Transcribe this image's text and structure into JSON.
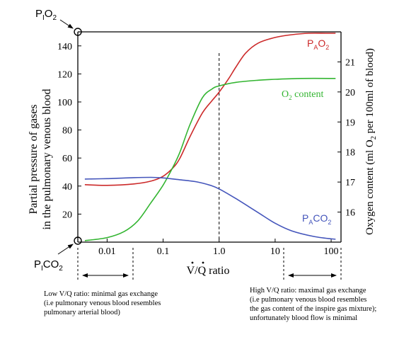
{
  "chart_data": {
    "type": "line",
    "x_scale": "log",
    "x_ticks": [
      0.01,
      0.1,
      1.0,
      10,
      100
    ],
    "x_tick_labels": [
      "0.01",
      "0.1",
      "1.0",
      "10",
      "100"
    ],
    "xlabel": "V/Q ratio",
    "xlim": [
      0.003,
      150
    ],
    "ylabel_left_line1": "Partial pressure of gases",
    "ylabel_left_line2": "in the pulmonary venous blood",
    "ylim_left": [
      0,
      150
    ],
    "y_ticks_left": [
      20,
      40,
      60,
      80,
      100,
      120,
      140
    ],
    "ylabel_right": "Oxygen content (ml O2 per 100ml of blood)",
    "ylim_right": [
      15,
      22
    ],
    "y_ticks_right": [
      16,
      17,
      18,
      19,
      20,
      21
    ],
    "reference_line_x": 1.0,
    "series": [
      {
        "name": "PAO2",
        "color": "#cc2a2a",
        "axis": "left",
        "points": [
          [
            0.004,
            41
          ],
          [
            0.01,
            40.5
          ],
          [
            0.03,
            41.5
          ],
          [
            0.06,
            43.5
          ],
          [
            0.1,
            47
          ],
          [
            0.15,
            53
          ],
          [
            0.2,
            60
          ],
          [
            0.3,
            75
          ],
          [
            0.5,
            92
          ],
          [
            0.75,
            101
          ],
          [
            1.0,
            107
          ],
          [
            1.5,
            117
          ],
          [
            2,
            125
          ],
          [
            3,
            135
          ],
          [
            5,
            142
          ],
          [
            10,
            146
          ],
          [
            20,
            148
          ],
          [
            40,
            149
          ],
          [
            80,
            149
          ],
          [
            120,
            149
          ]
        ]
      },
      {
        "name": "O2 content",
        "color": "#33b531",
        "axis": "right",
        "points": [
          [
            0.004,
            15.05
          ],
          [
            0.01,
            15.15
          ],
          [
            0.02,
            15.35
          ],
          [
            0.035,
            15.7
          ],
          [
            0.06,
            16.3
          ],
          [
            0.1,
            16.9
          ],
          [
            0.15,
            17.5
          ],
          [
            0.2,
            18.0
          ],
          [
            0.3,
            18.9
          ],
          [
            0.5,
            19.8
          ],
          [
            0.75,
            20.1
          ],
          [
            1.0,
            20.2
          ],
          [
            2,
            20.32
          ],
          [
            5,
            20.39
          ],
          [
            10,
            20.42
          ],
          [
            30,
            20.45
          ],
          [
            120,
            20.45
          ]
        ]
      },
      {
        "name": "PACO2",
        "color": "#4455bb",
        "axis": "left",
        "points": [
          [
            0.004,
            45
          ],
          [
            0.01,
            45.3
          ],
          [
            0.03,
            46
          ],
          [
            0.06,
            46.2
          ],
          [
            0.1,
            45.8
          ],
          [
            0.2,
            44.5
          ],
          [
            0.4,
            43
          ],
          [
            0.7,
            40.5
          ],
          [
            1.0,
            38
          ],
          [
            2,
            31
          ],
          [
            5,
            21
          ],
          [
            10,
            13.5
          ],
          [
            20,
            8
          ],
          [
            50,
            4
          ],
          [
            120,
            2
          ]
        ]
      }
    ],
    "labels": {
      "pio2": {
        "main": "P",
        "sub": "I",
        "rest": "O",
        "sub2": "2"
      },
      "pico2": {
        "main": "P",
        "sub": "I",
        "rest": "CO",
        "sub2": "2"
      },
      "pao2": {
        "main": "P",
        "sub": "A",
        "rest": "O",
        "sub2": "2"
      },
      "paco2": {
        "main": "P",
        "sub": "A",
        "rest": "CO",
        "sub2": "2"
      },
      "o2content": {
        "main": "O",
        "sub": "2",
        "rest": " content"
      }
    },
    "regions": {
      "low": {
        "line1": "Low V/Q ratio: minimal gas exchange",
        "line2": "(i.e pulmonary venous blood resembles",
        "line3": "pulmonary arterial blood)"
      },
      "high": {
        "line1": "High V/Q ratio: maximal gas exchange",
        "line2": "(i.e pulmonary venous blood resembles",
        "line3": "the gas content of the inspire gas mixture);",
        "line4": "unfortunately blood flow is minimal"
      }
    }
  }
}
